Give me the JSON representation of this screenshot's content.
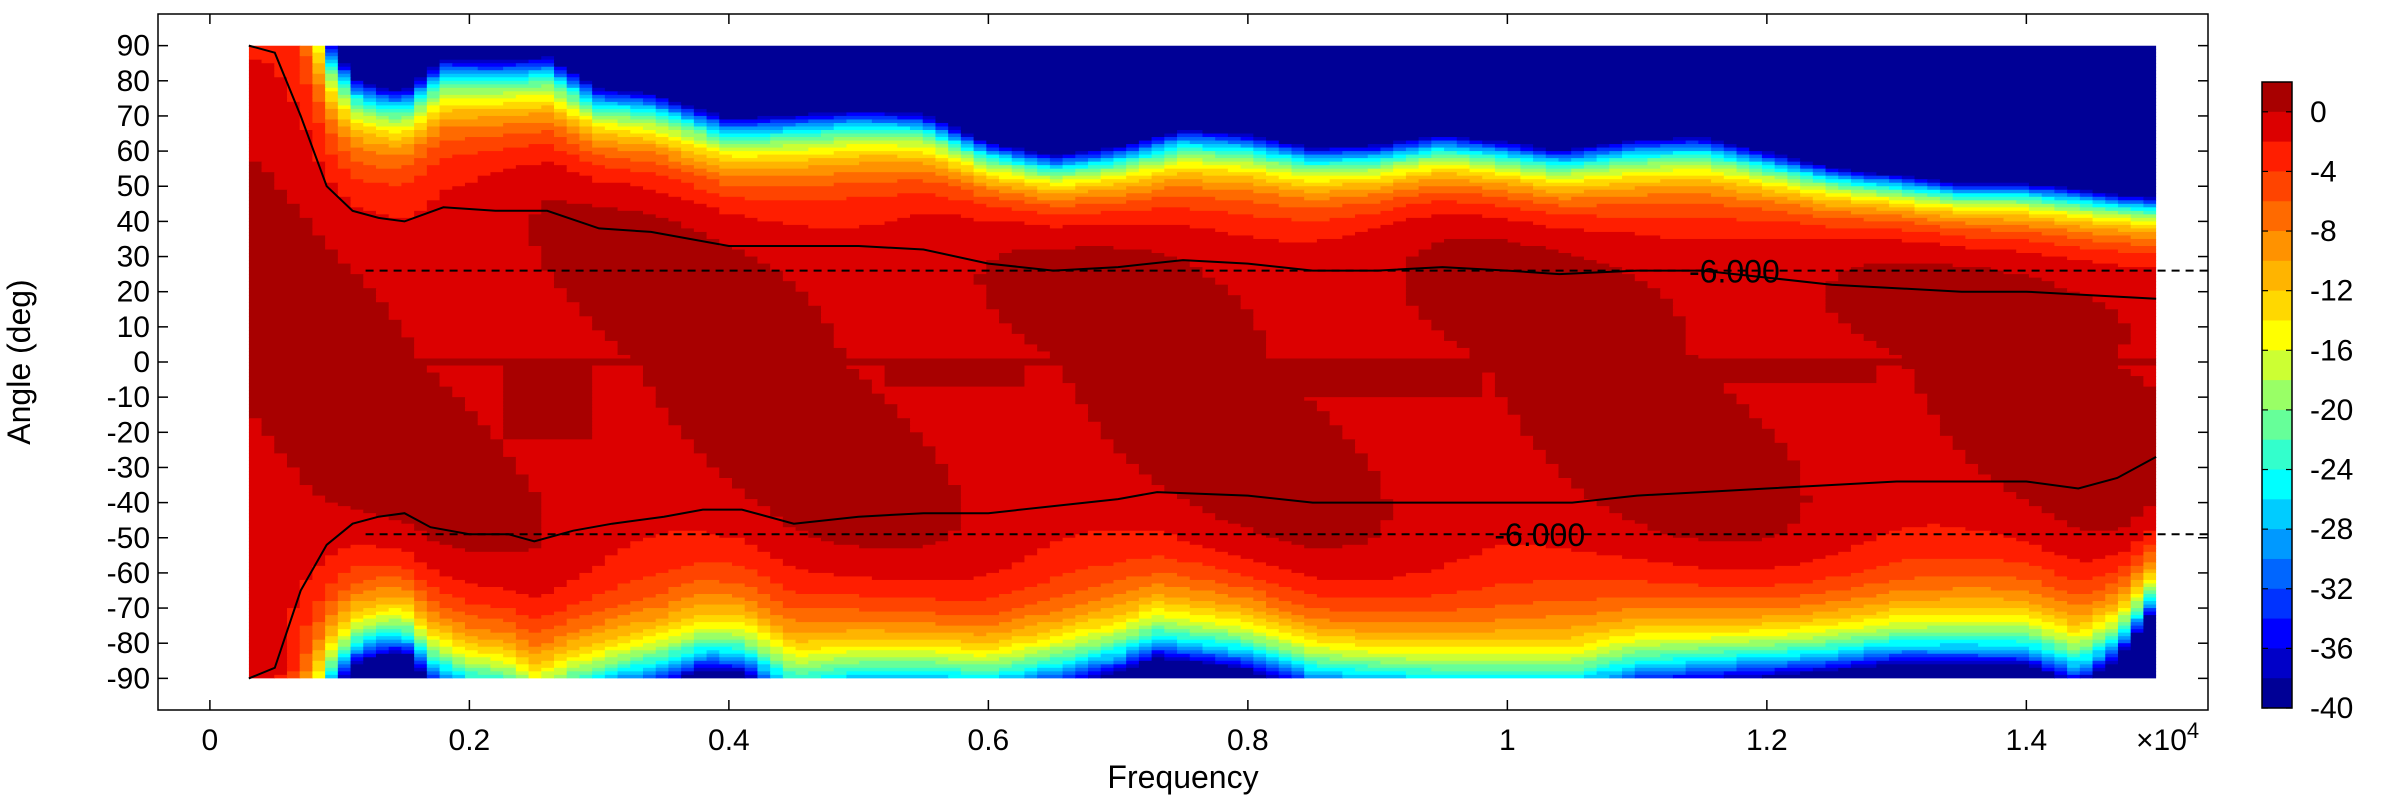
{
  "chart_data": {
    "type": "heatmap",
    "title": "",
    "xlabel": "Frequency",
    "ylabel": "Angle (deg)",
    "x_multiplier_label": "×10",
    "x_multiplier_exp": "4",
    "x_ticks": [
      {
        "value": 0,
        "label": "0"
      },
      {
        "value": 2000,
        "label": "0.2"
      },
      {
        "value": 4000,
        "label": "0.4"
      },
      {
        "value": 6000,
        "label": "0.6"
      },
      {
        "value": 8000,
        "label": "0.8"
      },
      {
        "value": 10000,
        "label": "1"
      },
      {
        "value": 12000,
        "label": "1.2"
      },
      {
        "value": 14000,
        "label": "1.4"
      }
    ],
    "y_ticks": [
      90,
      80,
      70,
      60,
      50,
      40,
      30,
      20,
      10,
      0,
      -10,
      -20,
      -30,
      -40,
      -50,
      -60,
      -70,
      -80,
      -90
    ],
    "xlim": [
      -400,
      15400
    ],
    "ylim": [
      -99,
      99
    ],
    "data_xrange": [
      300,
      15000
    ],
    "data_yrange": [
      -90,
      90
    ],
    "colorbar": {
      "min": -40,
      "max": 2,
      "tick_values": [
        0,
        -4,
        -8,
        -12,
        -16,
        -20,
        -24,
        -28,
        -32,
        -36,
        -40
      ],
      "tick_labels": [
        "0",
        "-4",
        "-8",
        "-12",
        "-16",
        "-20",
        "-24",
        "-28",
        "-32",
        "-36",
        "-40"
      ]
    },
    "contour_levels": [
      0,
      -2,
      -4,
      -6,
      -8,
      -10,
      -12,
      -14,
      -16,
      -18,
      -20,
      -22,
      -24,
      -26,
      -28,
      -30,
      -32,
      -34,
      -36,
      -38,
      -40
    ],
    "colors": [
      "#a80000",
      "#dc0000",
      "#ff1e00",
      "#ff4400",
      "#ff6a00",
      "#ff9200",
      "#ffb400",
      "#ffd800",
      "#ffff00",
      "#ccff33",
      "#99ff66",
      "#66ff99",
      "#33ffcc",
      "#00ffff",
      "#00ccff",
      "#0099ff",
      "#0066ff",
      "#0033ff",
      "#0000ff",
      "#0000c8",
      "#000096"
    ],
    "upper_6db_contour": [
      [
        300,
        90
      ],
      [
        500,
        88
      ],
      [
        700,
        70
      ],
      [
        900,
        50
      ],
      [
        1100,
        43
      ],
      [
        1300,
        41
      ],
      [
        1500,
        40
      ],
      [
        1800,
        44
      ],
      [
        2200,
        43
      ],
      [
        2600,
        43
      ],
      [
        3000,
        38
      ],
      [
        3400,
        37
      ],
      [
        4000,
        33
      ],
      [
        4500,
        33
      ],
      [
        5000,
        33
      ],
      [
        5500,
        32
      ],
      [
        6000,
        28
      ],
      [
        6500,
        26
      ],
      [
        7000,
        27
      ],
      [
        7500,
        29
      ],
      [
        8000,
        28
      ],
      [
        8500,
        26
      ],
      [
        9000,
        26
      ],
      [
        9500,
        27
      ],
      [
        10000,
        26
      ],
      [
        10400,
        25
      ],
      [
        11000,
        26
      ],
      [
        11500,
        26
      ],
      [
        12000,
        24
      ],
      [
        12500,
        22
      ],
      [
        13000,
        21
      ],
      [
        13500,
        20
      ],
      [
        14000,
        20
      ],
      [
        14500,
        19
      ],
      [
        15000,
        18
      ]
    ],
    "lower_6db_contour": [
      [
        300,
        -90
      ],
      [
        500,
        -87
      ],
      [
        700,
        -65
      ],
      [
        900,
        -52
      ],
      [
        1100,
        -46
      ],
      [
        1300,
        -44
      ],
      [
        1500,
        -43
      ],
      [
        1700,
        -47
      ],
      [
        2000,
        -49
      ],
      [
        2300,
        -49
      ],
      [
        2500,
        -51
      ],
      [
        2800,
        -48
      ],
      [
        3100,
        -46
      ],
      [
        3500,
        -44
      ],
      [
        3800,
        -42
      ],
      [
        4100,
        -42
      ],
      [
        4500,
        -46
      ],
      [
        5000,
        -44
      ],
      [
        5500,
        -43
      ],
      [
        6000,
        -43
      ],
      [
        6500,
        -41
      ],
      [
        7000,
        -39
      ],
      [
        7300,
        -37
      ],
      [
        8000,
        -38
      ],
      [
        8500,
        -40
      ],
      [
        9000,
        -40
      ],
      [
        9500,
        -40
      ],
      [
        10000,
        -40
      ],
      [
        10500,
        -40
      ],
      [
        11000,
        -38
      ],
      [
        11500,
        -37
      ],
      [
        12000,
        -36
      ],
      [
        12500,
        -35
      ],
      [
        13000,
        -34
      ],
      [
        13500,
        -34
      ],
      [
        14000,
        -34
      ],
      [
        14400,
        -36
      ],
      [
        14700,
        -33
      ],
      [
        15000,
        -27
      ]
    ],
    "reference_lines": [
      {
        "y": 26,
        "x_start": 1200,
        "label": "-6.000",
        "label_x": 11400
      },
      {
        "y": -49,
        "x_start": 1200,
        "label": "-6.000",
        "label_x": 9900
      }
    ],
    "main_lobe_pockets": [
      {
        "x0": 2250,
        "x1": 2950,
        "depth": -22
      },
      {
        "x0": 5200,
        "x1": 6300,
        "depth": -7
      },
      {
        "x0": 7900,
        "x1": 9800,
        "depth": -10
      },
      {
        "x0": 11200,
        "x1": 12800,
        "depth": -6
      }
    ]
  }
}
